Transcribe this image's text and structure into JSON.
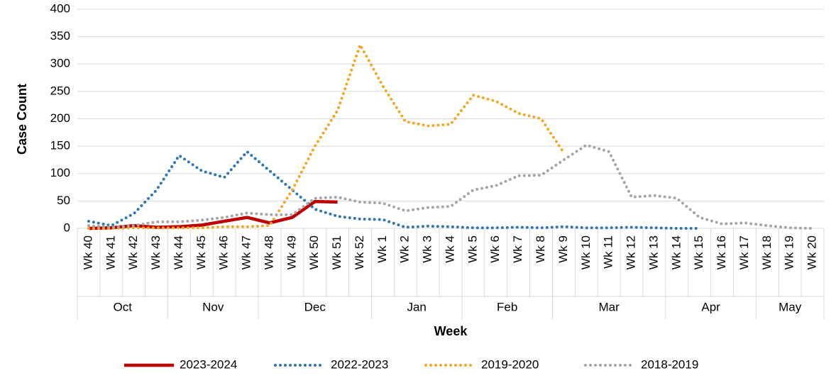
{
  "chart_data": {
    "type": "line",
    "y_label": "Case Count",
    "x_label": "Week",
    "categories": [
      "Wk 40",
      "Wk 41",
      "Wk 42",
      "Wk 43",
      "Wk 44",
      "Wk 45",
      "Wk 46",
      "Wk 47",
      "Wk 48",
      "Wk 49",
      "Wk 50",
      "Wk 51",
      "Wk 52",
      "Wk 1",
      "Wk 2",
      "Wk 3",
      "Wk 4",
      "Wk 5",
      "Wk 6",
      "Wk 7",
      "Wk 8",
      "Wk 9",
      "Wk 10",
      "Wk 11",
      "Wk 12",
      "Wk 13",
      "Wk 14",
      "Wk 15",
      "Wk 16",
      "Wk 17",
      "Wk 18",
      "Wk 19",
      "Wk 20"
    ],
    "groups": [
      {
        "label": "Oct",
        "count": 4
      },
      {
        "label": "Nov",
        "count": 4
      },
      {
        "label": "Dec",
        "count": 5
      },
      {
        "label": "Jan",
        "count": 4
      },
      {
        "label": "Feb",
        "count": 4
      },
      {
        "label": "Mar",
        "count": 5
      },
      {
        "label": "Apr",
        "count": 4
      },
      {
        "label": "May",
        "count": 3
      }
    ],
    "series": [
      {
        "name": "2023-2024",
        "color": "#c00000",
        "dash": "solid",
        "values": [
          0,
          1,
          5,
          2,
          3,
          6,
          13,
          20,
          10,
          20,
          49,
          48,
          null,
          null,
          null,
          null,
          null,
          null,
          null,
          null,
          null,
          null,
          null,
          null,
          null,
          null,
          null,
          null,
          null,
          null,
          null,
          null,
          null
        ]
      },
      {
        "name": "2022-2023",
        "color": "#2e75b6",
        "dash": "dotted",
        "values": [
          13,
          5,
          27,
          70,
          133,
          105,
          93,
          140,
          105,
          70,
          35,
          22,
          17,
          16,
          2,
          4,
          3,
          1,
          1,
          2,
          1,
          3,
          1,
          1,
          2,
          1,
          0,
          0,
          null,
          null,
          null,
          null,
          null
        ]
      },
      {
        "name": "2019-2020",
        "color": "#f5a623",
        "dash": "dotted",
        "values": [
          0,
          0,
          1,
          1,
          1,
          1,
          3,
          3,
          5,
          70,
          150,
          215,
          335,
          260,
          195,
          187,
          190,
          243,
          232,
          210,
          200,
          138,
          null,
          null,
          null,
          null,
          null,
          null,
          null,
          null,
          null,
          null,
          null
        ]
      },
      {
        "name": "2018-2019",
        "color": "#a5a5a5",
        "dash": "dotted",
        "values": [
          5,
          2,
          5,
          12,
          12,
          15,
          20,
          28,
          25,
          25,
          55,
          57,
          48,
          46,
          32,
          38,
          40,
          70,
          78,
          96,
          97,
          125,
          152,
          140,
          57,
          60,
          55,
          20,
          8,
          10,
          5,
          1,
          0
        ]
      }
    ],
    "ylim": [
      0,
      400
    ],
    "yticks": [
      0,
      50,
      100,
      150,
      200,
      250,
      300,
      350,
      400
    ],
    "grid": true,
    "legend": "bottom"
  }
}
